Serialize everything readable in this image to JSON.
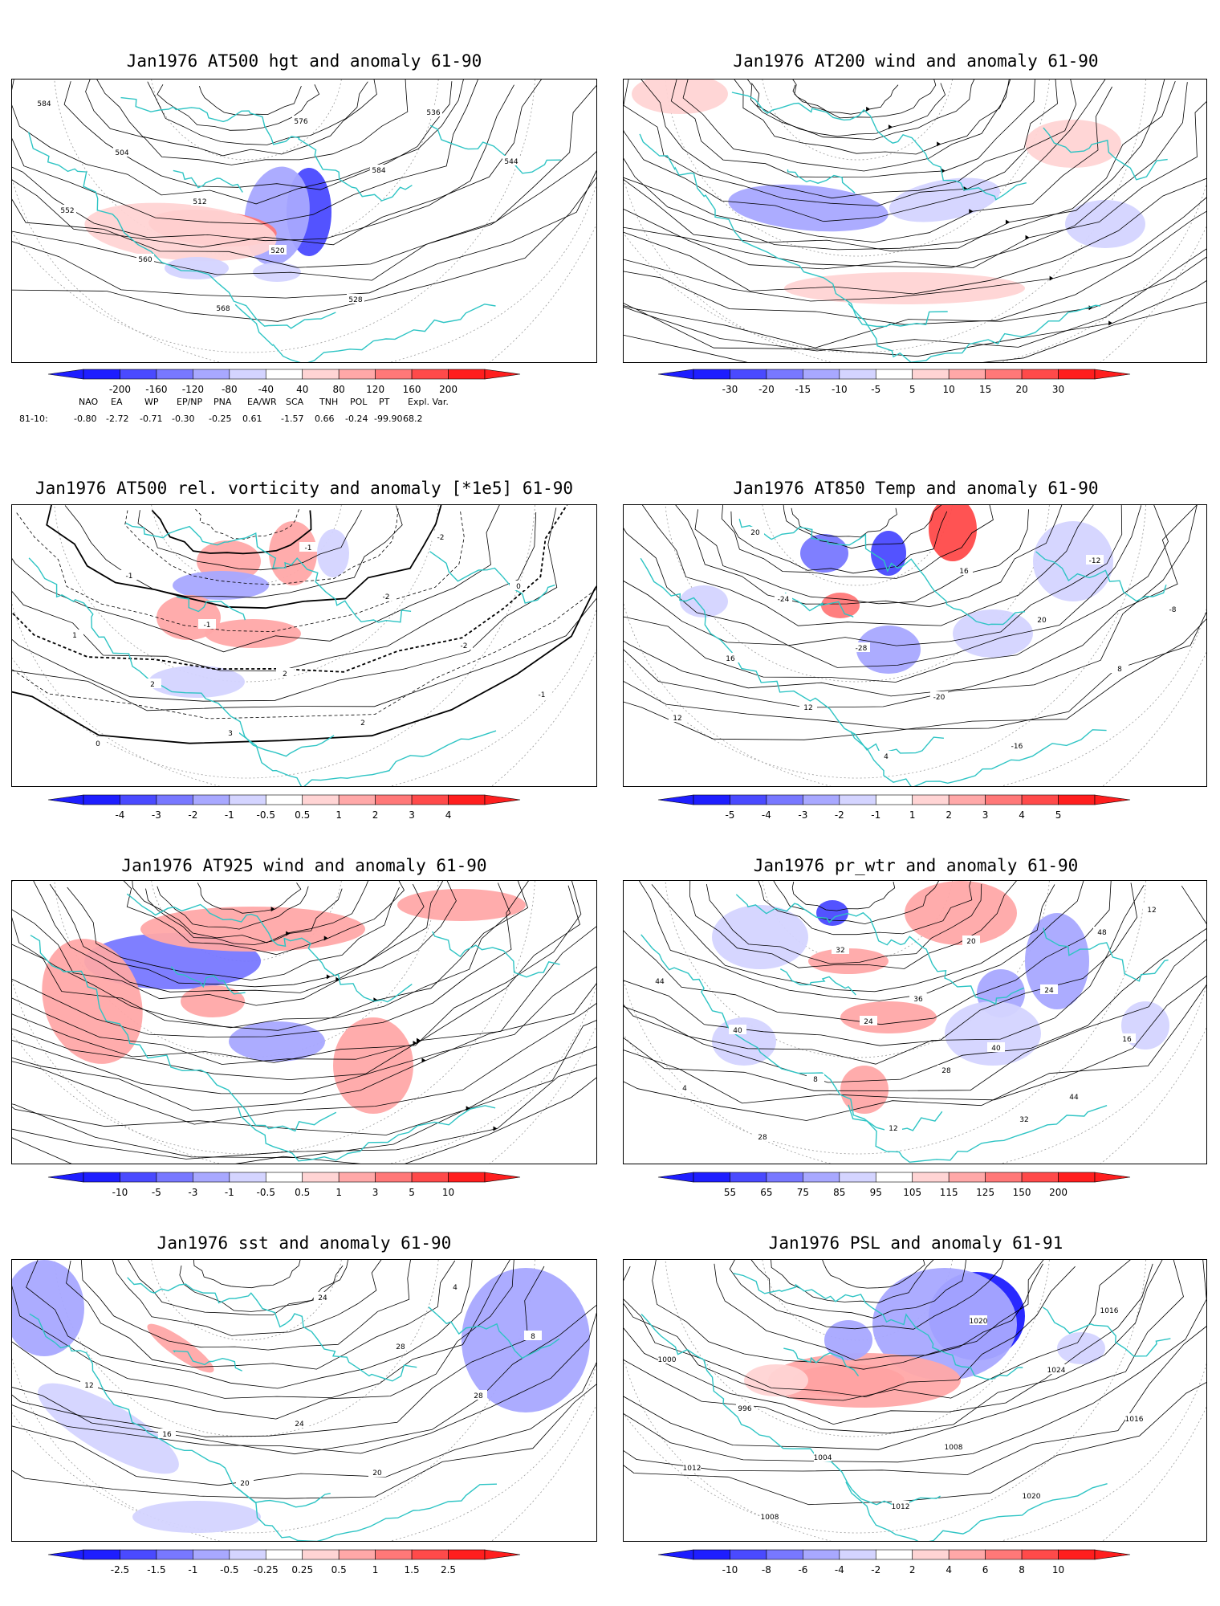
{
  "panels": [
    {
      "title": "Jan1976 AT500 hgt and anomaly 61-90",
      "colorbar": {
        "ticks": [
          "-200",
          "-160",
          "-120",
          "-80",
          "-40",
          "40",
          "80",
          "120",
          "160",
          "200"
        ]
      },
      "contour_labels": [
        "584",
        "504",
        "512",
        "520",
        "528",
        "536",
        "544",
        "552",
        "560",
        "568",
        "576",
        "584"
      ]
    },
    {
      "title": "Jan1976 AT200 wind and anomaly 61-90",
      "colorbar": {
        "ticks": [
          "-30",
          "-20",
          "-15",
          "-10",
          "-5",
          "5",
          "10",
          "15",
          "20",
          "30"
        ]
      }
    },
    {
      "title": "Jan1976 AT500 rel. vorticity and anomaly [*1e5] 61-90",
      "colorbar": {
        "ticks": [
          "-4",
          "-3",
          "-2",
          "-1",
          "-0.5",
          "0.5",
          "1",
          "2",
          "3",
          "4"
        ]
      },
      "contour_labels": [
        "-1",
        "-1",
        "2",
        "2",
        "-2",
        "0",
        "1",
        "2",
        "3",
        "-1",
        "-2",
        "-2",
        "-1",
        "0"
      ]
    },
    {
      "title": "Jan1976 AT850 Temp and anomaly 61-90",
      "colorbar": {
        "ticks": [
          "-5",
          "-4",
          "-3",
          "-2",
          "-1",
          "1",
          "2",
          "3",
          "4",
          "5"
        ]
      },
      "contour_labels": [
        "-24",
        "-28",
        "-20",
        "-16",
        "-12",
        "-8",
        "16",
        "12",
        "4",
        "16",
        "20",
        "8",
        "12",
        "20"
      ]
    },
    {
      "title": "Jan1976 AT925 wind and anomaly 61-90",
      "colorbar": {
        "ticks": [
          "-10",
          "-5",
          "-3",
          "-1",
          "-0.5",
          "0.5",
          "1",
          "3",
          "5",
          "10"
        ]
      }
    },
    {
      "title": "Jan1976 pr_wtr and anomaly 61-90",
      "colorbar": {
        "ticks": [
          "55",
          "65",
          "75",
          "85",
          "95",
          "105",
          "115",
          "125",
          "150",
          "200"
        ]
      },
      "contour_labels": [
        "24",
        "28",
        "32",
        "48",
        "44",
        "40",
        "8",
        "12",
        "20",
        "24",
        "16",
        "4",
        "28",
        "32",
        "36",
        "40",
        "44",
        "12"
      ]
    },
    {
      "title": "Jan1976 sst and anomaly 61-90",
      "colorbar": {
        "ticks": [
          "-2.5",
          "-1.5",
          "-1",
          "-0.5",
          "-0.25",
          "0.25",
          "0.5",
          "1",
          "1.5",
          "2.5"
        ]
      },
      "contour_labels": [
        "24",
        "20",
        "4",
        "8",
        "12",
        "16",
        "20",
        "24",
        "28",
        "28"
      ]
    },
    {
      "title": "Jan1976 PSL and anomaly 61-91",
      "colorbar": {
        "ticks": [
          "-10",
          "-8",
          "-6",
          "-4",
          "-2",
          "2",
          "4",
          "6",
          "8",
          "10"
        ]
      },
      "contour_labels": [
        "1008",
        "1020",
        "1016",
        "1000",
        "996",
        "1004",
        "1012",
        "1020",
        "1024",
        "1016",
        "1012",
        "1008"
      ]
    }
  ],
  "indices": {
    "headers": [
      "NAO",
      "EA",
      "WP",
      "EP/NP",
      "PNA",
      "EA/WR",
      "SCA",
      "TNH",
      "POL",
      "PT",
      "Expl. Var."
    ],
    "row_label": "81-10:",
    "values": [
      "-0.80",
      "-2.72",
      "-0.71",
      "-0.30",
      "-0.25",
      "0.61",
      "-1.57",
      "0.66",
      "-0.24",
      "-99.90",
      "68.2"
    ]
  },
  "colors": {
    "coast": "#2ec4c4",
    "contour": "#000000",
    "neg_strong": "#1414ff",
    "pos_strong": "#ff1414"
  }
}
